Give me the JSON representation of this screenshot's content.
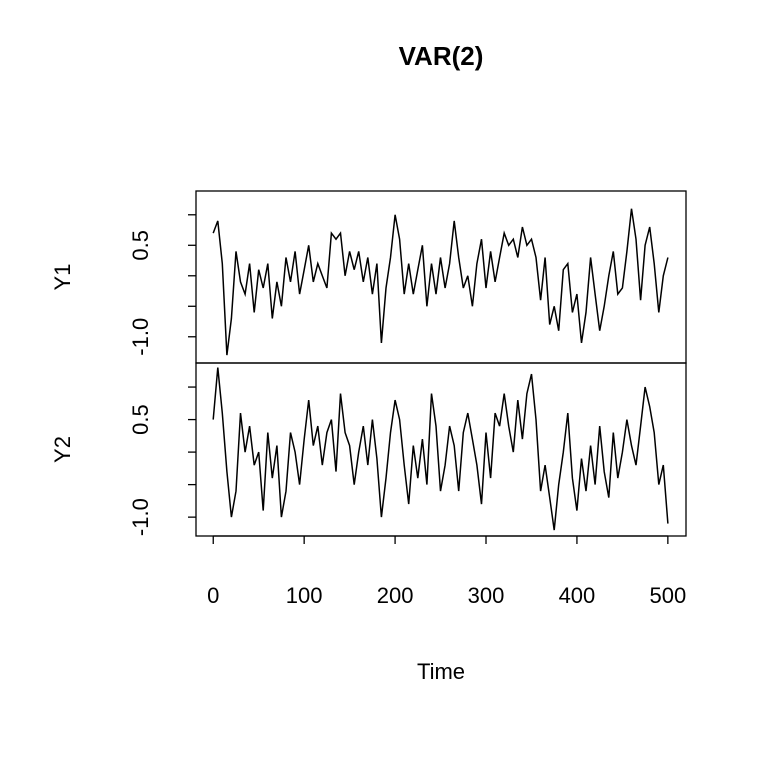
{
  "chart_data": {
    "type": "line",
    "title": "VAR(2)",
    "xlabel": "Time",
    "x": [
      0,
      5,
      10,
      15,
      20,
      25,
      30,
      35,
      40,
      45,
      50,
      55,
      60,
      65,
      70,
      75,
      80,
      85,
      90,
      95,
      100,
      105,
      110,
      115,
      120,
      125,
      130,
      135,
      140,
      145,
      150,
      155,
      160,
      165,
      170,
      175,
      180,
      185,
      190,
      195,
      200,
      205,
      210,
      215,
      220,
      225,
      230,
      235,
      240,
      245,
      250,
      255,
      260,
      265,
      270,
      275,
      280,
      285,
      290,
      295,
      300,
      305,
      310,
      315,
      320,
      325,
      330,
      335,
      340,
      345,
      350,
      355,
      360,
      365,
      370,
      375,
      380,
      385,
      390,
      395,
      400,
      405,
      410,
      415,
      420,
      425,
      430,
      435,
      440,
      445,
      450,
      455,
      460,
      465,
      470,
      475,
      480,
      485,
      490,
      495,
      500
    ],
    "xlim": [
      -18.96,
      519.96
    ],
    "xticks": [
      0,
      100,
      200,
      300,
      400,
      500
    ],
    "series": [
      {
        "name": "Y1",
        "color": "#000000",
        "ylim": [
          -1.43,
          1.39
        ],
        "yticks": [
          {
            "value": -1,
            "label": "-1.0"
          },
          0.5
        ],
        "ytick_marks": [
          -1,
          -0.5,
          0,
          0.5,
          1
        ],
        "values": [
          0.7,
          0.9,
          0.2,
          -1.3,
          -0.7,
          0.4,
          -0.1,
          -0.3,
          0.2,
          -0.6,
          0.1,
          -0.2,
          0.2,
          -0.7,
          -0.1,
          -0.5,
          0.3,
          -0.1,
          0.4,
          -0.3,
          0.1,
          0.5,
          -0.1,
          0.2,
          0.0,
          -0.2,
          0.7,
          0.6,
          0.7,
          0.0,
          0.4,
          0.1,
          0.4,
          -0.1,
          0.3,
          -0.3,
          0.2,
          -1.1,
          -0.2,
          0.3,
          1.0,
          0.6,
          -0.3,
          0.2,
          -0.3,
          0.1,
          0.5,
          -0.5,
          0.2,
          -0.3,
          0.3,
          -0.2,
          0.2,
          0.9,
          0.3,
          -0.2,
          0.0,
          -0.5,
          0.2,
          0.6,
          -0.2,
          0.4,
          -0.1,
          0.3,
          0.7,
          0.5,
          0.6,
          0.3,
          0.8,
          0.5,
          0.6,
          0.3,
          -0.4,
          0.3,
          -0.8,
          -0.5,
          -0.9,
          0.1,
          0.2,
          -0.6,
          -0.3,
          -1.1,
          -0.6,
          0.3,
          -0.3,
          -0.9,
          -0.5,
          0.0,
          0.4,
          -0.3,
          -0.2,
          0.4,
          1.1,
          0.6,
          -0.4,
          0.5,
          0.8,
          0.2,
          -0.6,
          0.0,
          0.3
        ]
      },
      {
        "name": "Y2",
        "color": "#000000",
        "ylim": [
          -1.29,
          1.37
        ],
        "yticks": [
          {
            "value": -1,
            "label": "-1.0"
          },
          0.5
        ],
        "ytick_marks": [
          -1,
          -0.5,
          0,
          0.5,
          1
        ],
        "values": [
          0.5,
          1.3,
          0.6,
          -0.3,
          -1.0,
          -0.6,
          0.6,
          0.0,
          0.4,
          -0.2,
          0.0,
          -0.9,
          0.3,
          -0.4,
          0.1,
          -1.0,
          -0.6,
          0.3,
          0.0,
          -0.5,
          0.2,
          0.8,
          0.1,
          0.4,
          -0.2,
          0.3,
          0.5,
          -0.3,
          0.9,
          0.3,
          0.1,
          -0.5,
          0.0,
          0.4,
          -0.2,
          0.5,
          -0.1,
          -1.0,
          -0.4,
          0.3,
          0.8,
          0.5,
          -0.2,
          -0.8,
          0.1,
          -0.4,
          0.2,
          -0.5,
          0.9,
          0.4,
          -0.6,
          -0.2,
          0.4,
          0.1,
          -0.6,
          0.3,
          0.6,
          0.2,
          -0.2,
          -0.8,
          0.3,
          -0.4,
          0.6,
          0.4,
          0.9,
          0.4,
          0.0,
          0.8,
          0.2,
          0.9,
          1.2,
          0.5,
          -0.6,
          -0.2,
          -0.7,
          -1.2,
          -0.5,
          0.0,
          0.6,
          -0.4,
          -0.9,
          -0.1,
          -0.6,
          0.1,
          -0.5,
          0.4,
          -0.3,
          -0.7,
          0.3,
          -0.4,
          0.0,
          0.5,
          0.1,
          -0.2,
          0.4,
          1.0,
          0.7,
          0.3,
          -0.5,
          -0.2,
          -1.1
        ]
      }
    ]
  }
}
